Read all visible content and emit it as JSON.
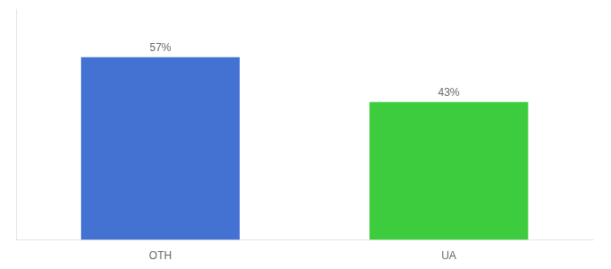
{
  "chart_data": {
    "type": "bar",
    "categories": [
      "OTH",
      "UA"
    ],
    "values": [
      57,
      43
    ],
    "value_labels": [
      "57%",
      "43%"
    ],
    "colors": [
      "#4472d3",
      "#3dcc3d"
    ],
    "ylim": [
      0,
      72
    ],
    "grid": false,
    "data_labels": true,
    "tick_labels": "x"
  }
}
